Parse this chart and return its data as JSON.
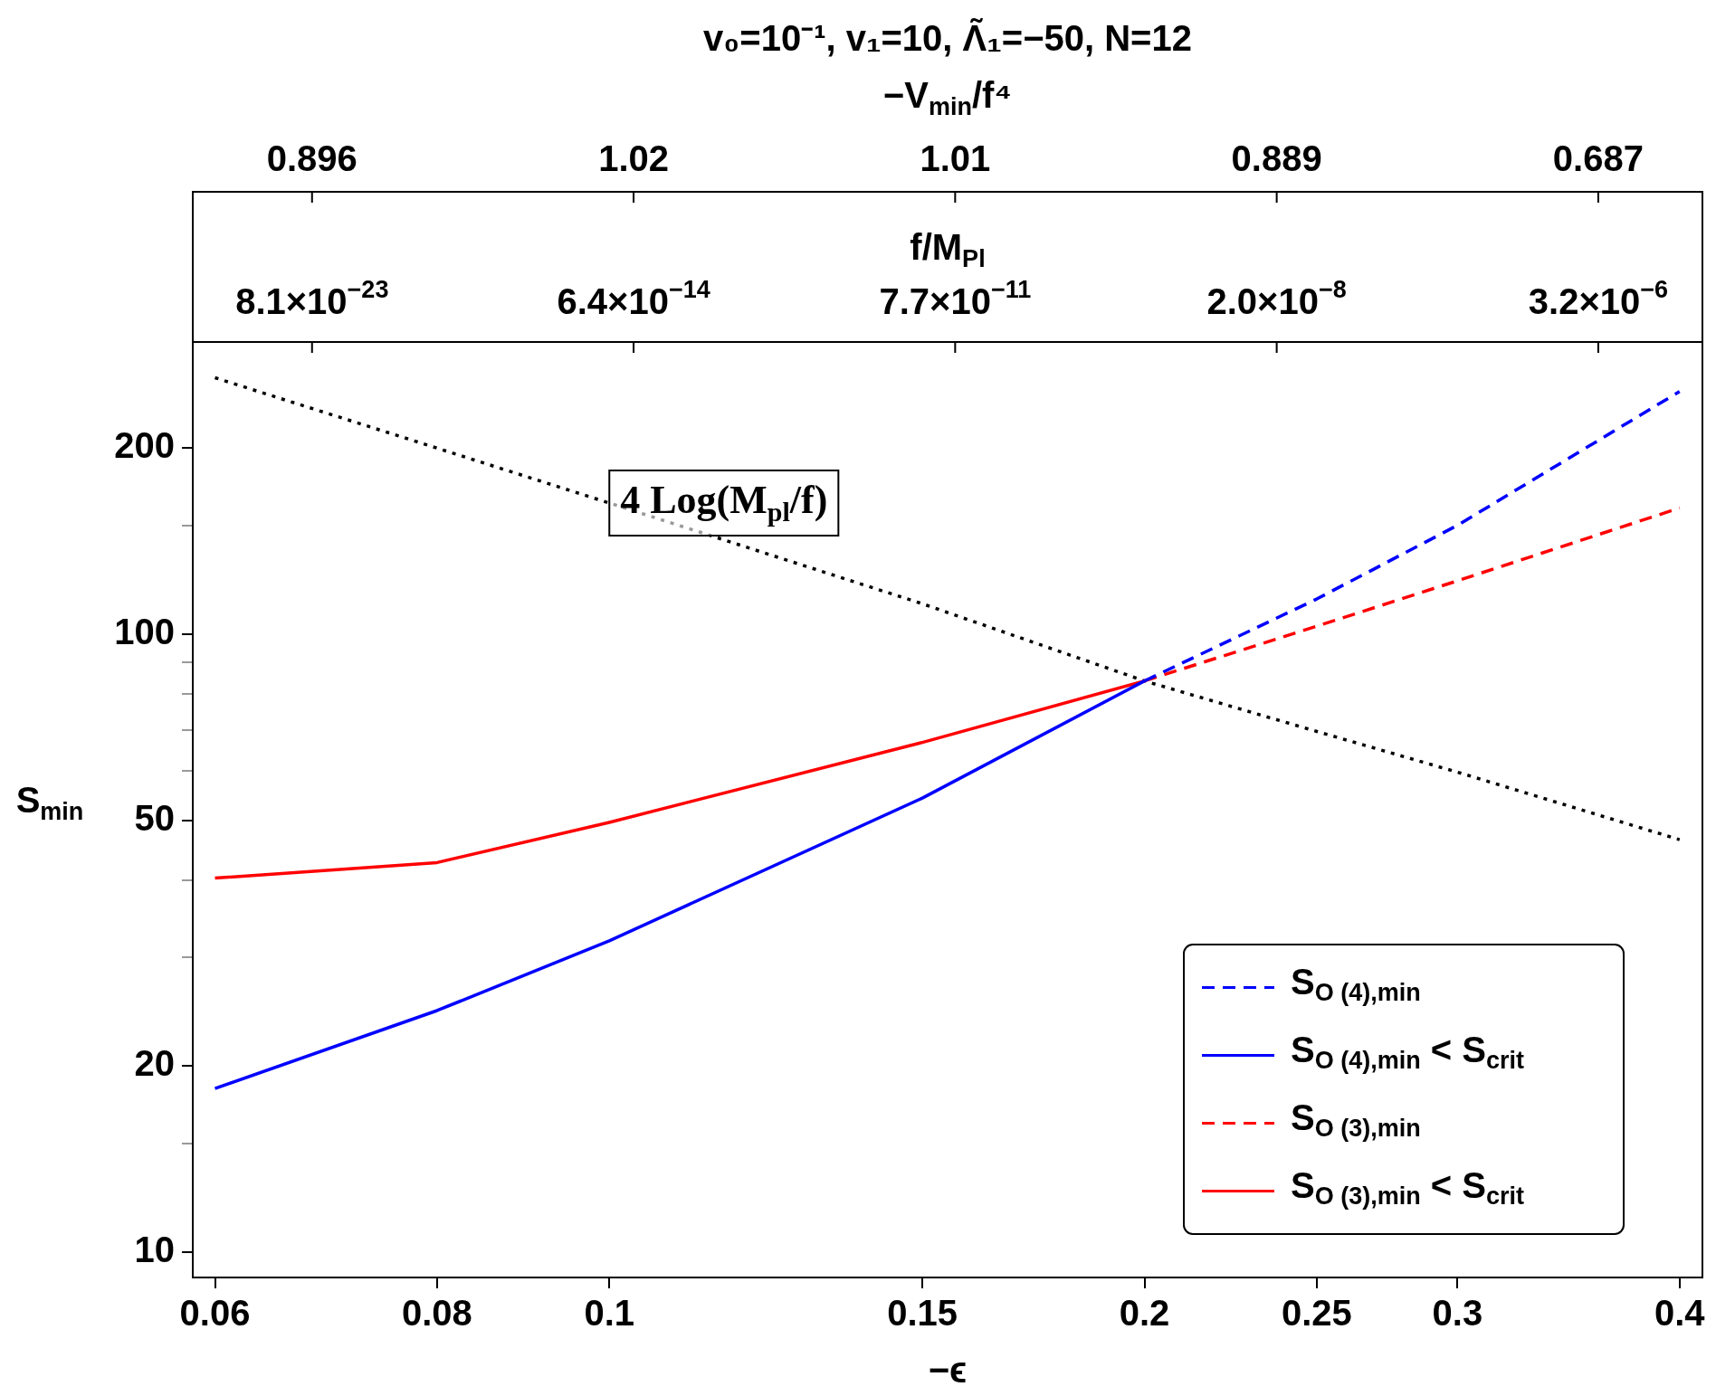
{
  "chart_data": {
    "type": "line",
    "title": "v₀=10⁻¹, v₁=10, Λ̃₁=−50, N=12",
    "subtitle": "−V$_{min}$/f⁴",
    "xlabel": "−ϵ",
    "ylabel": "S$_{min}$",
    "x2label": "f/M$_{Pl}$",
    "log": "xy",
    "xlim": [
      0.0583,
      0.412
    ],
    "xticks": [
      0.06,
      0.08,
      0.1,
      0.15,
      0.2,
      0.25,
      0.3,
      0.4
    ],
    "ylim": [
      9.1,
      297
    ],
    "yticks": [
      10,
      {
        "value": 15,
        "label": null
      },
      20,
      {
        "value": 30,
        "label": null
      },
      {
        "value": 40,
        "label": null
      },
      50,
      {
        "value": 60,
        "label": null
      },
      {
        "value": 70,
        "label": null
      },
      {
        "value": 80,
        "label": null
      },
      {
        "value": 90,
        "label": null
      },
      100,
      {
        "value": 150,
        "label": null
      },
      200
    ],
    "legend": "bottom right",
    "grid": false,
    "series": [
      {
        "name": "S$_{O (4),min}$",
        "color": "#0000ff",
        "line_style": "dashed",
        "x": [
          0.2,
          0.25,
          0.3,
          0.4
        ],
        "values": [
          84,
          114,
          150,
          247
        ]
      },
      {
        "name": "S$_{O (4),min}$ < S$_{crit}$",
        "color": "#0000ff",
        "line_style": "solid",
        "x": [
          0.06,
          0.08,
          0.1,
          0.15,
          0.2
        ],
        "values": [
          18.4,
          24.6,
          31.9,
          54.3,
          84
        ]
      },
      {
        "name": "S$_{O (3),min}$",
        "color": "#ff0000",
        "line_style": "dashed",
        "x": [
          0.2,
          0.25,
          0.3,
          0.4
        ],
        "values": [
          84,
          103,
          122,
          160
        ]
      },
      {
        "name": "S$_{O (3),min}$ < S$_{crit}$",
        "color": "#ff0000",
        "line_style": "solid",
        "x": [
          0.06,
          0.08,
          0.1,
          0.15,
          0.2
        ],
        "values": [
          40.3,
          42.7,
          49.6,
          66.8,
          84
        ]
      },
      {
        "color": "#000000",
        "line_style": "dotted",
        "x": [
          0.06,
          0.08,
          0.1,
          0.15,
          0.2,
          0.25,
          0.3,
          0.4
        ],
        "values": [
          260,
          200,
          163,
          112,
          84,
          69.6,
          59.8,
          46.5
        ]
      }
    ],
    "annotations": [
      {
        "text": "4 Log(M$_{pl}$/f)",
        "x": 0.1,
        "y": 163
      },
      "0.896",
      "1.02",
      "1.01",
      "0.889",
      "0.687",
      "8.1×10$^{−23}$",
      "6.4×10$^{−14}$",
      "7.7×10$^{−11}$",
      "2.0×10$^{−8}$",
      "3.2×10$^{−6}$"
    ]
  }
}
